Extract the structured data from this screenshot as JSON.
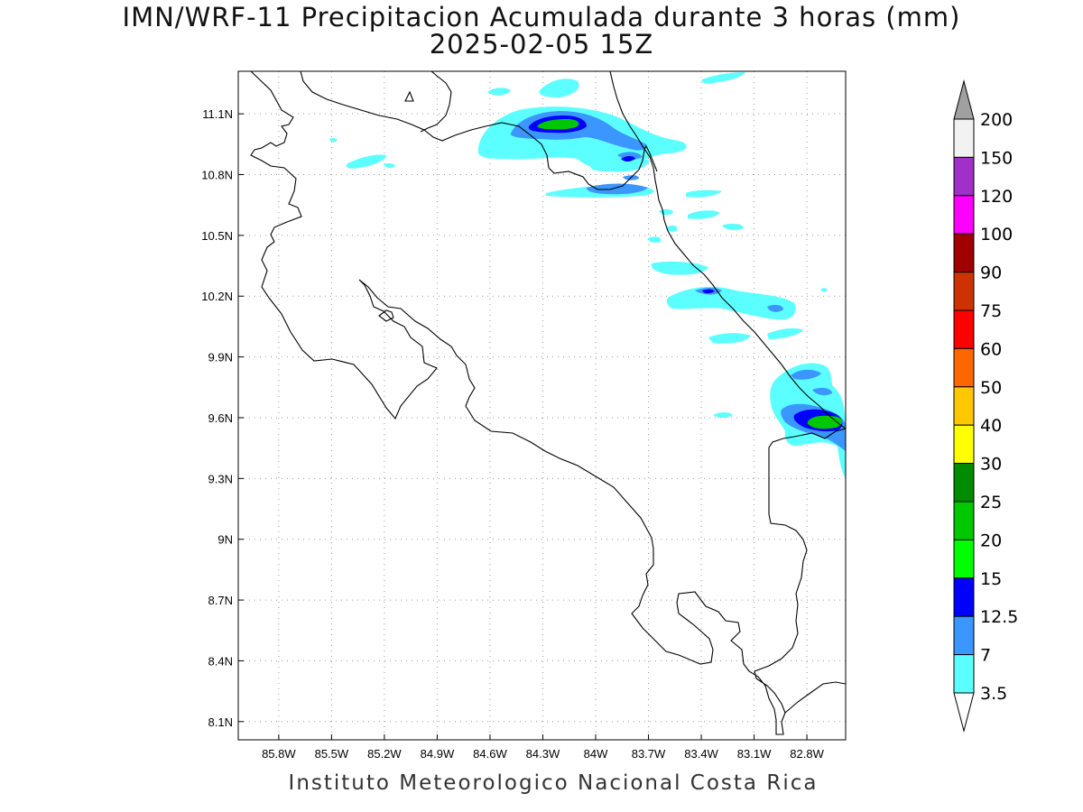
{
  "title_line1": "IMN/WRF-11 Precipitacion Acumulada durante 3 horas (mm)",
  "title_line2": "2025-02-05 15Z",
  "footer": "Instituto Meteorologico Nacional Costa Rica",
  "map": {
    "lon_range": [
      -86.03,
      -82.58
    ],
    "lat_range": [
      8.01,
      11.31
    ],
    "lat_ticks": [
      "11.1N",
      "10.8N",
      "10.5N",
      "10.2N",
      "9.9N",
      "9.6N",
      "9.3N",
      "9N",
      "8.7N",
      "8.4N",
      "8.1N"
    ],
    "lon_ticks": [
      "85.8W",
      "85.5W",
      "85.2W",
      "84.9W",
      "84.6W",
      "84.3W",
      "84W",
      "83.7W",
      "83.4W",
      "83.1W",
      "82.8W"
    ],
    "grid": "dotted"
  },
  "colorbar": {
    "labels": [
      "200",
      "150",
      "120",
      "100",
      "90",
      "75",
      "60",
      "50",
      "40",
      "30",
      "25",
      "20",
      "15",
      "12.5",
      "7",
      "3.5"
    ],
    "colors": [
      "#f2f2f2",
      "#a030c8",
      "#ff00ff",
      "#a00000",
      "#cc3300",
      "#ff0000",
      "#ff6600",
      "#ffc800",
      "#ffff00",
      "#008c00",
      "#00c800",
      "#00ff00",
      "#0000ff",
      "#3c96ff",
      "#5cffff"
    ],
    "top_arrow_color": "#a0a0a0",
    "bottom_arrow_color": "#ffffff"
  },
  "colors": {
    "cyan": "#5cffff",
    "light_blue": "#3c96ff",
    "blue": "#0000ff",
    "green": "#00c800"
  }
}
